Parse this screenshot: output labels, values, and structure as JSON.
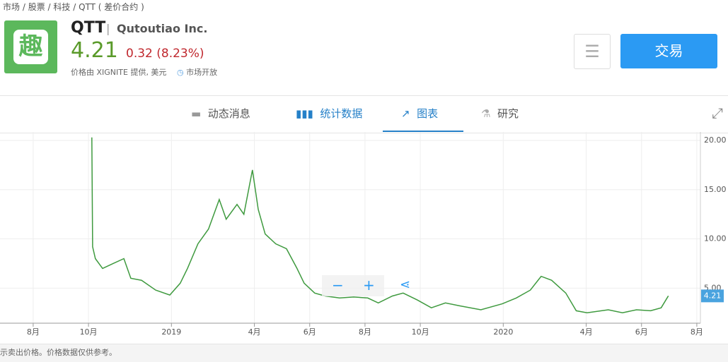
{
  "breadcrumb": [
    "市场",
    "股票",
    "科技",
    "QTT",
    "( 差价合约 )"
  ],
  "header": {
    "logo_text": "趣",
    "symbol": "QTT",
    "company": "Qutoutiao Inc.",
    "price": "4.21",
    "change": "0.32 (8.23%)",
    "source": "价格由 XIGNITE 提供, 美元",
    "market_status": "市场开放",
    "trade_button": "交易"
  },
  "tabs": [
    "动态消息",
    "统计数据",
    "图表",
    "研究"
  ],
  "footer": "示卖出价格。价格数据仅供参考。",
  "chart_data": {
    "type": "line",
    "color": "#3f9a3f",
    "x": [
      9.12,
      9.15,
      9.25,
      9.51,
      9.89,
      10.28,
      10.53,
      10.92,
      11.43,
      11.94,
      12.32,
      12.58,
      12.96,
      13.34,
      13.73,
      13.98,
      14.37,
      14.62,
      14.93,
      15.14,
      15.39,
      15.77,
      16.16,
      16.54,
      16.8,
      17.18,
      17.56,
      18.08,
      18.59,
      19.1,
      19.48,
      19.99,
      20.38,
      20.89,
      21.4,
      21.91,
      22.42,
      23.19,
      23.96,
      24.47,
      24.98,
      25.37,
      25.75,
      26.26,
      26.64,
      27.03,
      27.8,
      28.31,
      28.82,
      29.33,
      29.71,
      29.97
    ],
    "values": [
      20.3,
      9.2,
      8,
      7,
      7.5,
      8,
      6,
      5.8,
      4.8,
      4.3,
      5.5,
      7,
      9.5,
      11,
      14,
      12,
      13.5,
      12.5,
      17,
      13,
      10.5,
      9.5,
      9,
      7,
      5.5,
      4.5,
      4.2,
      4,
      4.1,
      4,
      3.5,
      4.2,
      4.5,
      3.8,
      3,
      3.5,
      3.2,
      2.8,
      3.4,
      4,
      4.8,
      6.2,
      5.8,
      4.5,
      2.7,
      2.5,
      2.8,
      2.5,
      2.8,
      2.7,
      3,
      4.21
    ],
    "xlim": [
      5.8,
      31.13
    ],
    "xticks": [
      {
        "value": 7,
        "label": "8月"
      },
      {
        "value": 9,
        "label": "10月"
      },
      {
        "value": 12,
        "label": "2019"
      },
      {
        "value": 15,
        "label": "4月"
      },
      {
        "value": 17,
        "label": "6月"
      },
      {
        "value": 19,
        "label": "8月"
      },
      {
        "value": 21,
        "label": "10月"
      },
      {
        "value": 24,
        "label": "2020"
      },
      {
        "value": 27,
        "label": "4月"
      },
      {
        "value": 29,
        "label": "6月"
      },
      {
        "value": 31,
        "label": "8月"
      }
    ],
    "ylim": [
      1.44,
      20.86
    ],
    "yticks": [
      {
        "value": 5,
        "label": "5.00"
      },
      {
        "value": 10,
        "label": "10.00"
      },
      {
        "value": 15,
        "label": "15.00"
      },
      {
        "value": 20,
        "label": "20.00"
      }
    ],
    "grid": true
  }
}
